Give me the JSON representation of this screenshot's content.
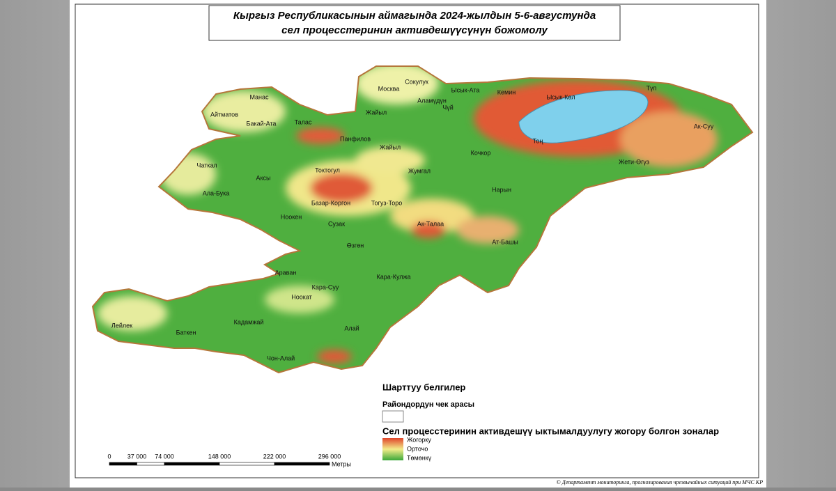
{
  "title": {
    "line1": "Кыргыз Республикасынын аймагында 2024-жылдын 5-6-августунда",
    "line2": "сел процесстеринин активдешүүсүнүн божомолу"
  },
  "districts": [
    "Манас",
    "Айтматов",
    "Бакай-Ата",
    "Талас",
    "Чаткал",
    "Ала-Бука",
    "Аксы",
    "Панфилов",
    "Москва",
    "Сокулук",
    "Ысык-Ата",
    "Аламүдүн",
    "Чүй",
    "Жайыл",
    "Жайыл",
    "Кемин",
    "Ысык-Көл",
    "Түп",
    "Ак-Суу",
    "Тоң",
    "Кочкор",
    "Жети-Өгүз",
    "Токтогул",
    "Жумгал",
    "Нарын",
    "Базар-Коргон",
    "Тогуз-Торо",
    "Ноокен",
    "Сузак",
    "Ак-Талаа",
    "Ат-Башы",
    "Өзгөн",
    "Араван",
    "Кара-Суу",
    "Кара-Кулжа",
    "Ноокат",
    "Лейлек",
    "Баткен",
    "Кадамжай",
    "Алай",
    "Чон-Алай"
  ],
  "legend": {
    "title": "Шарттуу белгилер",
    "boundary": "Райондордун чек арасы",
    "zones_title": "Сел процесстеринин активдешүү ыктымалдуулугу жогору болгон зоналар",
    "high": "Жогорку",
    "medium": "Орточо",
    "low": "Төмөнкү"
  },
  "scale": {
    "labels": [
      "0",
      "37 000",
      "74 000",
      "148 000",
      "222 000",
      "296 000"
    ],
    "unit": "Метры"
  },
  "credit": "© Департамент мониторинга, прогнозирования чрезвычайных ситуаций при МЧС КР"
}
